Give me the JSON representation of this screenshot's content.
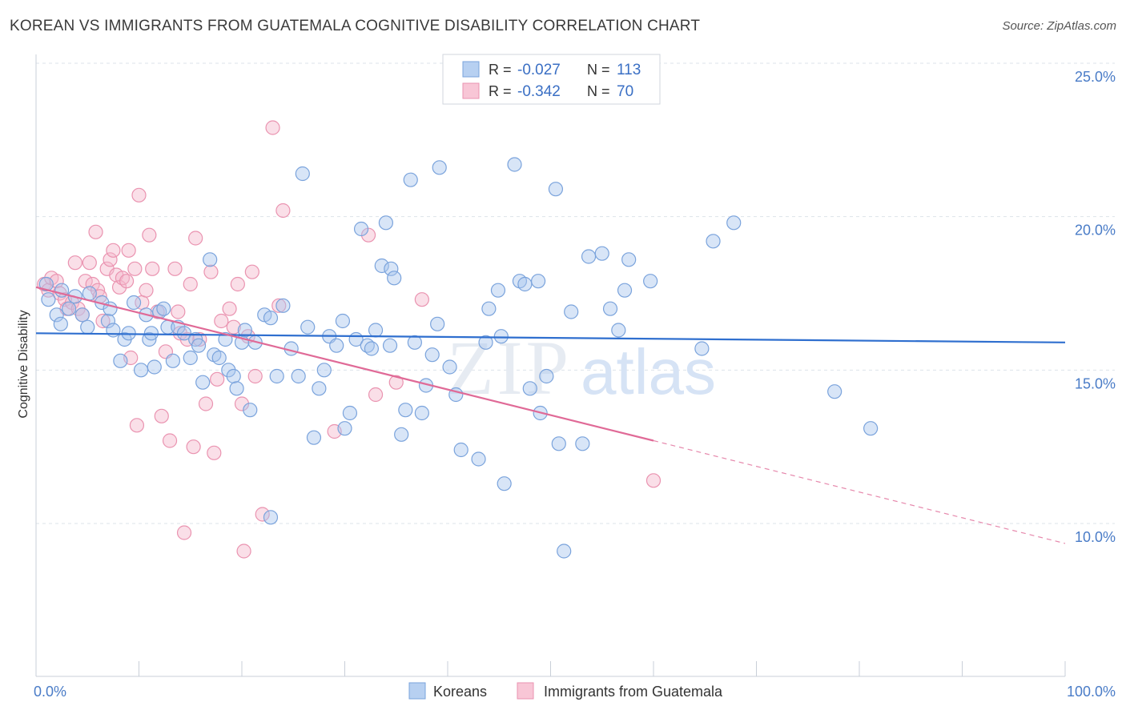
{
  "header": {
    "title": "KOREAN VS IMMIGRANTS FROM GUATEMALA COGNITIVE DISABILITY CORRELATION CHART",
    "source": "Source: ZipAtlas.com"
  },
  "colors": {
    "blue_fill": "#a9c6ee",
    "blue_stroke": "#7aa3dc",
    "blue_line": "#2f6fcf",
    "pink_fill": "#f5b9cc",
    "pink_stroke": "#ea93b0",
    "pink_line": "#e06a97",
    "grid": "#dde3ea",
    "tick_text": "#4a7cc7"
  },
  "watermark": {
    "zip": "ZIP",
    "atlas": "atlas"
  },
  "stats_box": {
    "rows": [
      {
        "r_label": "R =",
        "r_value": "-0.027",
        "n_label": "N =",
        "n_value": "113"
      },
      {
        "r_label": "R =",
        "r_value": "-0.342",
        "n_label": "N =",
        "n_value": "70"
      }
    ]
  },
  "chart_data": {
    "type": "scatter",
    "title": "KOREAN VS IMMIGRANTS FROM GUATEMALA COGNITIVE DISABILITY CORRELATION CHART",
    "xlabel": "",
    "ylabel": "Cognitive Disability",
    "xlim": [
      0,
      100
    ],
    "ylim": [
      5,
      26
    ],
    "x_tick_labels": [
      "0.0%",
      "100.0%"
    ],
    "y_ticks": [
      10,
      15,
      20,
      25
    ],
    "y_tick_labels": [
      "10.0%",
      "15.0%",
      "20.0%",
      "25.0%"
    ],
    "grid": true,
    "legend": [
      "Koreans",
      "Immigrants from Guatemala"
    ],
    "series": [
      {
        "name": "Koreans",
        "r": -0.027,
        "n": 113,
        "trend": {
          "x0": 0,
          "y0": 16.2,
          "x1": 100,
          "y1": 15.9
        },
        "points": [
          [
            1.0,
            17.8
          ],
          [
            1.2,
            17.3
          ],
          [
            2.0,
            16.8
          ],
          [
            2.4,
            16.5
          ],
          [
            3.2,
            17.0
          ],
          [
            3.8,
            17.4
          ],
          [
            4.5,
            16.8
          ],
          [
            5.0,
            16.4
          ],
          [
            5.2,
            17.5
          ],
          [
            6.4,
            17.2
          ],
          [
            7.0,
            16.6
          ],
          [
            7.2,
            17.0
          ],
          [
            7.5,
            16.3
          ],
          [
            8.2,
            15.3
          ],
          [
            8.6,
            16.0
          ],
          [
            9.0,
            16.2
          ],
          [
            9.5,
            17.2
          ],
          [
            10.2,
            15.0
          ],
          [
            10.7,
            16.8
          ],
          [
            11.0,
            16.0
          ],
          [
            11.2,
            16.2
          ],
          [
            11.5,
            15.1
          ],
          [
            12.0,
            16.9
          ],
          [
            12.4,
            17.0
          ],
          [
            12.8,
            16.4
          ],
          [
            13.3,
            15.3
          ],
          [
            13.8,
            16.4
          ],
          [
            14.4,
            16.2
          ],
          [
            15.0,
            15.4
          ],
          [
            15.5,
            16.0
          ],
          [
            15.8,
            15.8
          ],
          [
            16.2,
            14.6
          ],
          [
            16.9,
            18.6
          ],
          [
            17.3,
            15.5
          ],
          [
            17.8,
            15.4
          ],
          [
            18.4,
            16.0
          ],
          [
            18.7,
            15.0
          ],
          [
            19.2,
            14.8
          ],
          [
            19.5,
            14.4
          ],
          [
            20.0,
            15.9
          ],
          [
            20.3,
            16.3
          ],
          [
            20.8,
            13.7
          ],
          [
            21.3,
            15.9
          ],
          [
            22.2,
            16.8
          ],
          [
            22.8,
            16.7
          ],
          [
            23.4,
            14.8
          ],
          [
            24.0,
            17.1
          ],
          [
            24.8,
            15.7
          ],
          [
            25.5,
            14.8
          ],
          [
            25.9,
            21.4
          ],
          [
            26.4,
            16.4
          ],
          [
            27.0,
            12.8
          ],
          [
            27.5,
            14.4
          ],
          [
            28.0,
            15.0
          ],
          [
            28.5,
            16.1
          ],
          [
            29.2,
            15.8
          ],
          [
            29.8,
            16.6
          ],
          [
            30.0,
            13.1
          ],
          [
            30.5,
            13.6
          ],
          [
            31.1,
            16.0
          ],
          [
            31.6,
            19.6
          ],
          [
            32.2,
            15.8
          ],
          [
            32.6,
            15.7
          ],
          [
            33.0,
            16.3
          ],
          [
            33.6,
            18.4
          ],
          [
            34.0,
            19.8
          ],
          [
            34.5,
            18.3
          ],
          [
            34.8,
            18.0
          ],
          [
            35.5,
            12.9
          ],
          [
            35.9,
            13.7
          ],
          [
            36.4,
            21.2
          ],
          [
            36.8,
            15.9
          ],
          [
            37.5,
            13.6
          ],
          [
            37.9,
            14.5
          ],
          [
            38.5,
            15.5
          ],
          [
            39.0,
            16.5
          ],
          [
            39.2,
            21.6
          ],
          [
            40.2,
            15.1
          ],
          [
            40.8,
            14.2
          ],
          [
            41.3,
            12.4
          ],
          [
            43.0,
            12.1
          ],
          [
            43.7,
            15.9
          ],
          [
            44.0,
            17.0
          ],
          [
            44.9,
            17.6
          ],
          [
            45.2,
            16.1
          ],
          [
            45.5,
            11.3
          ],
          [
            46.5,
            21.7
          ],
          [
            47.0,
            17.9
          ],
          [
            47.5,
            17.8
          ],
          [
            48.0,
            14.4
          ],
          [
            48.8,
            17.9
          ],
          [
            49.0,
            13.6
          ],
          [
            49.6,
            14.8
          ],
          [
            50.5,
            20.9
          ],
          [
            50.8,
            12.6
          ],
          [
            51.3,
            9.1
          ],
          [
            52.0,
            16.9
          ],
          [
            53.1,
            12.6
          ],
          [
            53.7,
            18.7
          ],
          [
            55.0,
            18.8
          ],
          [
            55.8,
            17.0
          ],
          [
            56.6,
            16.3
          ],
          [
            57.2,
            17.6
          ],
          [
            57.6,
            18.6
          ],
          [
            59.7,
            17.9
          ],
          [
            64.7,
            15.7
          ],
          [
            65.8,
            19.2
          ],
          [
            67.8,
            19.8
          ],
          [
            77.6,
            14.3
          ],
          [
            81.1,
            13.1
          ],
          [
            22.8,
            10.2
          ],
          [
            2.5,
            17.6
          ],
          [
            34.4,
            15.8
          ]
        ]
      },
      {
        "name": "Immigrants from Guatemala",
        "r": -0.342,
        "n": 70,
        "trend": {
          "x0": 0,
          "y0": 17.7,
          "x1": 60,
          "y1": 12.7
        },
        "trend_dashed": {
          "x0": 60,
          "y0": 12.7,
          "x1": 100,
          "y1": 9.35
        },
        "points": [
          [
            0.8,
            17.8
          ],
          [
            1.2,
            17.6
          ],
          [
            1.5,
            18.0
          ],
          [
            2.0,
            17.9
          ],
          [
            2.3,
            17.5
          ],
          [
            2.8,
            17.3
          ],
          [
            3.0,
            17.0
          ],
          [
            3.5,
            17.2
          ],
          [
            3.8,
            18.5
          ],
          [
            4.1,
            17.0
          ],
          [
            4.5,
            16.8
          ],
          [
            4.8,
            17.9
          ],
          [
            5.2,
            18.5
          ],
          [
            5.5,
            17.8
          ],
          [
            5.8,
            19.5
          ],
          [
            6.0,
            17.6
          ],
          [
            6.2,
            17.4
          ],
          [
            6.5,
            16.6
          ],
          [
            6.9,
            18.3
          ],
          [
            7.2,
            18.6
          ],
          [
            7.5,
            18.9
          ],
          [
            7.8,
            18.1
          ],
          [
            8.1,
            17.7
          ],
          [
            8.4,
            18.0
          ],
          [
            8.8,
            17.9
          ],
          [
            9.0,
            18.9
          ],
          [
            9.2,
            15.4
          ],
          [
            9.6,
            18.3
          ],
          [
            9.8,
            13.2
          ],
          [
            10.0,
            20.7
          ],
          [
            10.3,
            17.2
          ],
          [
            10.7,
            17.6
          ],
          [
            11.0,
            19.4
          ],
          [
            11.3,
            18.3
          ],
          [
            11.8,
            16.9
          ],
          [
            12.2,
            13.5
          ],
          [
            12.6,
            15.6
          ],
          [
            13.0,
            12.7
          ],
          [
            13.5,
            18.3
          ],
          [
            13.8,
            16.9
          ],
          [
            14.0,
            16.2
          ],
          [
            14.4,
            9.7
          ],
          [
            14.7,
            16.0
          ],
          [
            15.0,
            17.8
          ],
          [
            15.3,
            12.5
          ],
          [
            15.5,
            19.3
          ],
          [
            15.9,
            16.0
          ],
          [
            16.5,
            13.9
          ],
          [
            17.0,
            18.2
          ],
          [
            17.3,
            12.3
          ],
          [
            17.6,
            14.7
          ],
          [
            18.0,
            16.6
          ],
          [
            18.8,
            17.0
          ],
          [
            19.2,
            16.4
          ],
          [
            19.6,
            17.8
          ],
          [
            20.0,
            13.9
          ],
          [
            20.2,
            9.1
          ],
          [
            20.6,
            16.1
          ],
          [
            21.0,
            18.2
          ],
          [
            21.3,
            14.8
          ],
          [
            22.0,
            10.3
          ],
          [
            23.0,
            22.9
          ],
          [
            23.6,
            17.1
          ],
          [
            24.0,
            20.2
          ],
          [
            29.0,
            13.0
          ],
          [
            32.3,
            19.4
          ],
          [
            33.0,
            14.2
          ],
          [
            35.0,
            14.6
          ],
          [
            37.5,
            17.3
          ],
          [
            60.0,
            11.4
          ]
        ]
      }
    ]
  },
  "legend": {
    "items": [
      {
        "label": "Koreans",
        "color": "blue"
      },
      {
        "label": "Immigrants from Guatemala",
        "color": "pink"
      }
    ]
  }
}
